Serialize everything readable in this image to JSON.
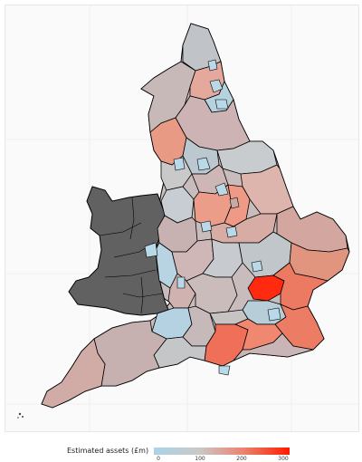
{
  "legend": {
    "title": "Estimated assets (£m)",
    "ticks": [
      "0",
      "100",
      "200",
      "300"
    ],
    "min": 0,
    "max": 300
  },
  "colors": {
    "wales": "#616161",
    "low": "#a9d3e7",
    "mid": "#c9c9c9",
    "high": "#e98470",
    "max": "#ff1a00",
    "border": "#000000"
  }
}
